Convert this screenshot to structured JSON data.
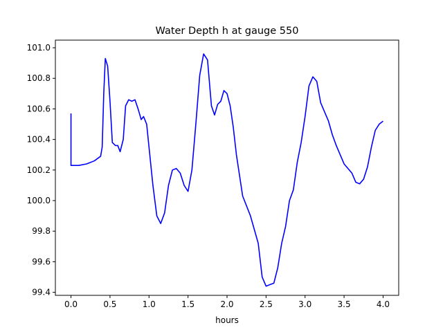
{
  "chart_data": {
    "type": "line",
    "title": "Water Depth h at gauge 550",
    "xlabel": "hours",
    "ylabel": "",
    "xlim": [
      -0.2,
      4.2
    ],
    "ylim": [
      99.38,
      101.05
    ],
    "xticks": [
      0.0,
      0.5,
      1.0,
      1.5,
      2.0,
      2.5,
      3.0,
      3.5,
      4.0
    ],
    "xtick_labels": [
      "0.0",
      "0.5",
      "1.0",
      "1.5",
      "2.0",
      "2.5",
      "3.0",
      "3.5",
      "4.0"
    ],
    "yticks": [
      99.4,
      99.6,
      99.8,
      100.0,
      100.2,
      100.4,
      100.6,
      100.8,
      101.0
    ],
    "ytick_labels": [
      "99.4",
      "99.6",
      "99.8",
      "100.0",
      "100.2",
      "100.4",
      "100.6",
      "100.8",
      "101.0"
    ],
    "grid": false,
    "series": [
      {
        "color": "#0000ff",
        "x": [
          0.0,
          0.0,
          0.1,
          0.2,
          0.3,
          0.38,
          0.4,
          0.42,
          0.44,
          0.47,
          0.5,
          0.53,
          0.57,
          0.6,
          0.63,
          0.67,
          0.7,
          0.74,
          0.78,
          0.82,
          0.86,
          0.9,
          0.93,
          0.97,
          1.0,
          1.05,
          1.1,
          1.15,
          1.2,
          1.25,
          1.3,
          1.35,
          1.4,
          1.45,
          1.5,
          1.55,
          1.6,
          1.65,
          1.7,
          1.75,
          1.8,
          1.84,
          1.88,
          1.92,
          1.96,
          2.0,
          2.04,
          2.08,
          2.12,
          2.2,
          2.3,
          2.4,
          2.45,
          2.5,
          2.55,
          2.6,
          2.65,
          2.7,
          2.75,
          2.8,
          2.85,
          2.9,
          2.95,
          3.0,
          3.05,
          3.1,
          3.15,
          3.2,
          3.25,
          3.3,
          3.35,
          3.4,
          3.45,
          3.5,
          3.55,
          3.6,
          3.65,
          3.7,
          3.75,
          3.8,
          3.85,
          3.9,
          3.95,
          4.0
        ],
        "y": [
          100.57,
          100.23,
          100.23,
          100.24,
          100.26,
          100.29,
          100.35,
          100.7,
          100.93,
          100.88,
          100.65,
          100.38,
          100.36,
          100.36,
          100.32,
          100.4,
          100.62,
          100.66,
          100.65,
          100.66,
          100.6,
          100.53,
          100.55,
          100.5,
          100.35,
          100.1,
          99.9,
          99.85,
          99.92,
          100.1,
          100.2,
          100.21,
          100.18,
          100.1,
          100.06,
          100.2,
          100.5,
          100.82,
          100.96,
          100.92,
          100.62,
          100.56,
          100.63,
          100.65,
          100.72,
          100.7,
          100.62,
          100.48,
          100.3,
          100.03,
          99.9,
          99.72,
          99.5,
          99.44,
          99.45,
          99.46,
          99.56,
          99.72,
          99.83,
          100.0,
          100.07,
          100.25,
          100.38,
          100.55,
          100.75,
          100.81,
          100.78,
          100.64,
          100.58,
          100.52,
          100.43,
          100.36,
          100.3,
          100.24,
          100.21,
          100.18,
          100.12,
          100.11,
          100.14,
          100.22,
          100.35,
          100.46,
          100.5,
          100.52
        ]
      }
    ]
  }
}
